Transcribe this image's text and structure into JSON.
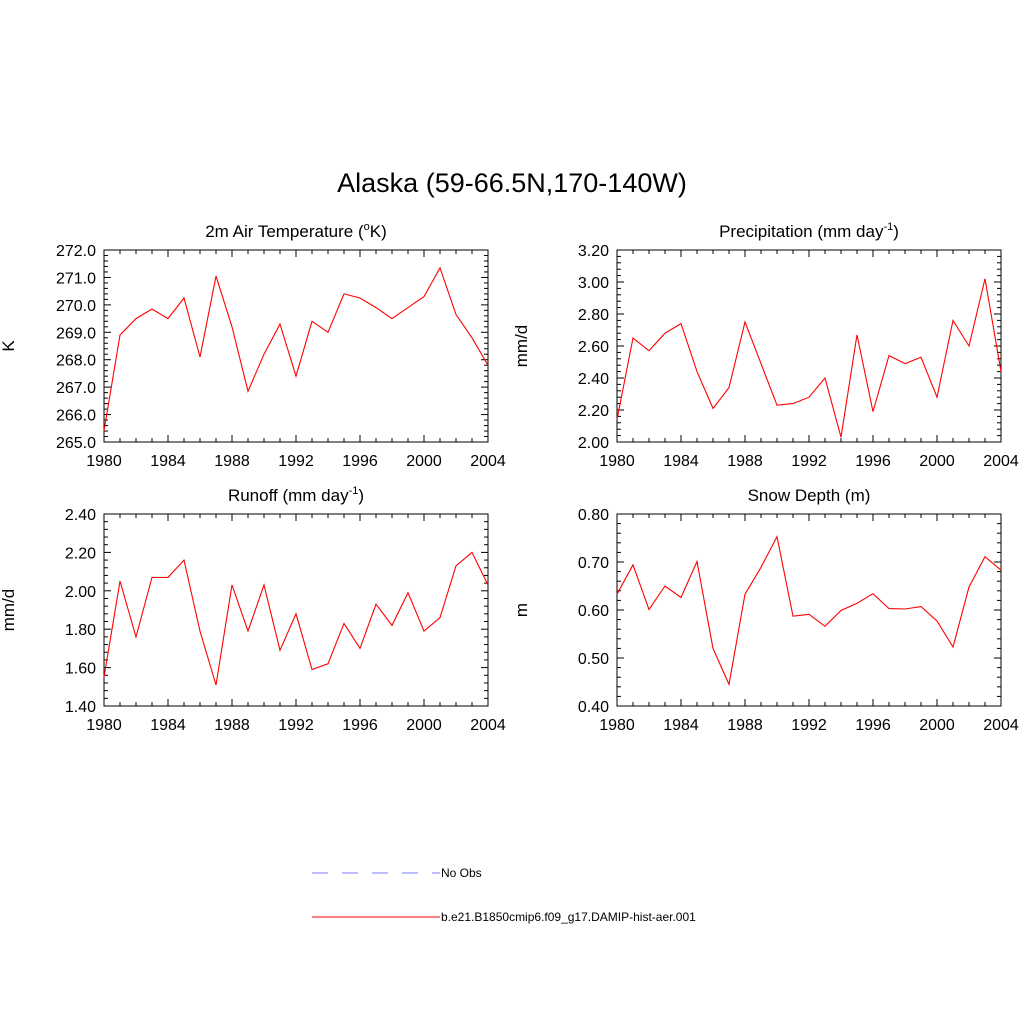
{
  "title": "Alaska (59-66.5N,170-140W)",
  "colors": {
    "model_line": "#ff0000",
    "obs_line": "#9999ff",
    "axis": "#000000"
  },
  "legend": {
    "items": [
      {
        "label": "No Obs",
        "style": "dashed",
        "color": "#9999ff"
      },
      {
        "label": "b.e21.B1850cmip6.f09_g17.DAMIP-hist-aer.001",
        "style": "solid",
        "color": "#ff0000"
      }
    ]
  },
  "chart_data": [
    {
      "type": "line",
      "title": "2m Air Temperature (oK)",
      "title_parts": {
        "main": "2m Air Temperature (",
        "sup": "o",
        "tail": "K)"
      },
      "ylabel": "K",
      "xlim": [
        1980,
        2004
      ],
      "ylim": [
        265.0,
        272.0
      ],
      "xticks": [
        "1980",
        "1984",
        "1988",
        "1992",
        "1996",
        "2000",
        "2004"
      ],
      "yticks": [
        "265.0",
        "266.0",
        "267.0",
        "268.0",
        "269.0",
        "270.0",
        "271.0",
        "272.0"
      ],
      "x": [
        1980,
        1981,
        1982,
        1983,
        1984,
        1985,
        1986,
        1987,
        1988,
        1989,
        1990,
        1991,
        1992,
        1993,
        1994,
        1995,
        1996,
        1997,
        1998,
        1999,
        2000,
        2001,
        2002,
        2003,
        2004
      ],
      "series": [
        {
          "name": "b.e21.B1850cmip6.f09_g17.DAMIP-hist-aer.001",
          "values": [
            265.4,
            268.9,
            269.5,
            269.85,
            269.5,
            270.25,
            268.1,
            271.05,
            269.2,
            266.85,
            268.2,
            269.3,
            267.4,
            269.4,
            269.0,
            270.4,
            270.25,
            269.9,
            269.5,
            269.9,
            270.3,
            271.35,
            269.65,
            268.8,
            267.8
          ]
        }
      ]
    },
    {
      "type": "line",
      "title": "Precipitation (mm day-1)",
      "title_parts": {
        "main": "Precipitation (mm day",
        "sup": "-1",
        "tail": ")"
      },
      "ylabel": "mm/d",
      "xlim": [
        1980,
        2004
      ],
      "ylim": [
        2.0,
        3.2
      ],
      "xticks": [
        "1980",
        "1984",
        "1988",
        "1992",
        "1996",
        "2000",
        "2004"
      ],
      "yticks": [
        "2.00",
        "2.20",
        "2.40",
        "2.60",
        "2.80",
        "3.00",
        "3.20"
      ],
      "x": [
        1980,
        1981,
        1982,
        1983,
        1984,
        1985,
        1986,
        1987,
        1988,
        1989,
        1990,
        1991,
        1992,
        1993,
        1994,
        1995,
        1996,
        1997,
        1998,
        1999,
        2000,
        2001,
        2002,
        2003,
        2004
      ],
      "series": [
        {
          "name": "b.e21.B1850cmip6.f09_g17.DAMIP-hist-aer.001",
          "values": [
            2.14,
            2.65,
            2.57,
            2.68,
            2.74,
            2.44,
            2.21,
            2.34,
            2.75,
            2.49,
            2.23,
            2.24,
            2.28,
            2.4,
            2.03,
            2.67,
            2.19,
            2.54,
            2.49,
            2.53,
            2.28,
            2.76,
            2.6,
            3.02,
            2.44
          ]
        }
      ]
    },
    {
      "type": "line",
      "title": "Runoff (mm day-1)",
      "title_parts": {
        "main": "Runoff (mm day",
        "sup": "-1",
        "tail": ")"
      },
      "ylabel": "mm/d",
      "xlim": [
        1980,
        2004
      ],
      "ylim": [
        1.4,
        2.4
      ],
      "xticks": [
        "1980",
        "1984",
        "1988",
        "1992",
        "1996",
        "2000",
        "2004"
      ],
      "yticks": [
        "1.40",
        "1.60",
        "1.80",
        "2.00",
        "2.20",
        "2.40"
      ],
      "x": [
        1980,
        1981,
        1982,
        1983,
        1984,
        1985,
        1986,
        1987,
        1988,
        1989,
        1990,
        1991,
        1992,
        1993,
        1994,
        1995,
        1996,
        1997,
        1998,
        1999,
        2000,
        2001,
        2002,
        2003,
        2004
      ],
      "series": [
        {
          "name": "b.e21.B1850cmip6.f09_g17.DAMIP-hist-aer.001",
          "values": [
            1.55,
            2.05,
            1.76,
            2.07,
            2.07,
            2.16,
            1.79,
            1.51,
            2.03,
            1.79,
            2.03,
            1.69,
            1.88,
            1.59,
            1.62,
            1.83,
            1.7,
            1.93,
            1.82,
            1.99,
            1.79,
            1.86,
            2.13,
            2.2,
            2.03
          ]
        }
      ]
    },
    {
      "type": "line",
      "title": "Snow Depth (m)",
      "title_parts": {
        "main": "Snow Depth (m)",
        "sup": "",
        "tail": ""
      },
      "ylabel": "m",
      "xlim": [
        1980,
        2004
      ],
      "ylim": [
        0.4,
        0.8
      ],
      "xticks": [
        "1980",
        "1984",
        "1988",
        "1992",
        "1996",
        "2000",
        "2004"
      ],
      "yticks": [
        "0.40",
        "0.50",
        "0.60",
        "0.70",
        "0.80"
      ],
      "x": [
        1980,
        1981,
        1982,
        1983,
        1984,
        1985,
        1986,
        1987,
        1988,
        1989,
        1990,
        1991,
        1992,
        1993,
        1994,
        1995,
        1996,
        1997,
        1998,
        1999,
        2000,
        2001,
        2002,
        2003,
        2004
      ],
      "series": [
        {
          "name": "b.e21.B1850cmip6.f09_g17.DAMIP-hist-aer.001",
          "values": [
            0.633,
            0.694,
            0.601,
            0.65,
            0.626,
            0.701,
            0.52,
            0.445,
            0.633,
            0.689,
            0.753,
            0.587,
            0.591,
            0.566,
            0.599,
            0.614,
            0.634,
            0.603,
            0.602,
            0.607,
            0.577,
            0.523,
            0.648,
            0.711,
            0.683
          ]
        }
      ]
    }
  ]
}
